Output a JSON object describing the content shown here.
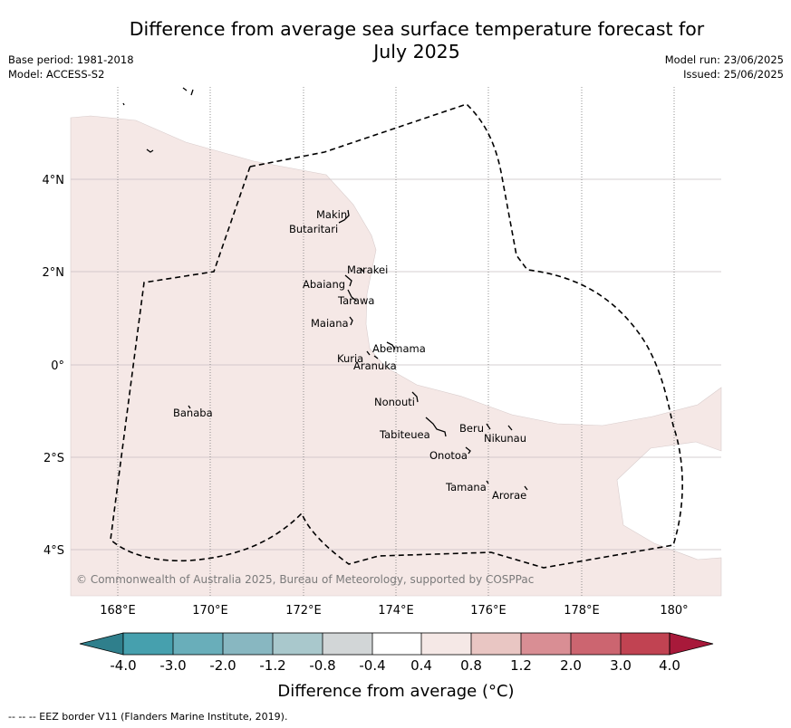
{
  "title_line1": "Difference from average sea surface temperature forecast for",
  "title_line2": "July 2025",
  "meta": {
    "base_period": "Base period: 1981-2018",
    "model": "Model: ACCESS-S2",
    "model_run": "Model run: 23/06/2025",
    "issued": "Issued: 25/06/2025"
  },
  "axes": {
    "lat_labels": [
      "4°N",
      "2°N",
      "0°",
      "2°S",
      "4°S"
    ],
    "lon_labels": [
      "168°E",
      "170°E",
      "172°E",
      "174°E",
      "176°E",
      "178°E",
      "180°"
    ]
  },
  "islands": [
    {
      "name": "Makin"
    },
    {
      "name": "Butaritari"
    },
    {
      "name": "Marakei"
    },
    {
      "name": "Abaiang"
    },
    {
      "name": "Tarawa"
    },
    {
      "name": "Maiana"
    },
    {
      "name": "Abemama"
    },
    {
      "name": "Kuria"
    },
    {
      "name": "Aranuka"
    },
    {
      "name": "Nonouti"
    },
    {
      "name": "Banaba"
    },
    {
      "name": "Tabiteuea"
    },
    {
      "name": "Beru"
    },
    {
      "name": "Nikunau"
    },
    {
      "name": "Onotoa"
    },
    {
      "name": "Tamana"
    },
    {
      "name": "Arorae"
    }
  ],
  "copyright": "© Commonwealth of Australia 2025, Bureau of Meteorology, supported by COSPPac",
  "colorbar": {
    "tick_labels": [
      "-4.0",
      "-3.0",
      "-2.0",
      "-1.2",
      "-0.8",
      "-0.4",
      "0.4",
      "0.8",
      "1.2",
      "2.0",
      "3.0",
      "4.0"
    ],
    "colors": [
      "#2f7f8c",
      "#46a0ae",
      "#69aeba",
      "#88b7c1",
      "#a9c8cc",
      "#d2d6d7",
      "#ffffff",
      "#f5e8e6",
      "#e9c6c3",
      "#d98e94",
      "#cc6570",
      "#c14352",
      "#a8193a"
    ],
    "label": "Difference from average (°C)"
  },
  "footnote": "--  --  -- EEZ border V11 (Flanders Marine Institute, 2019)."
}
